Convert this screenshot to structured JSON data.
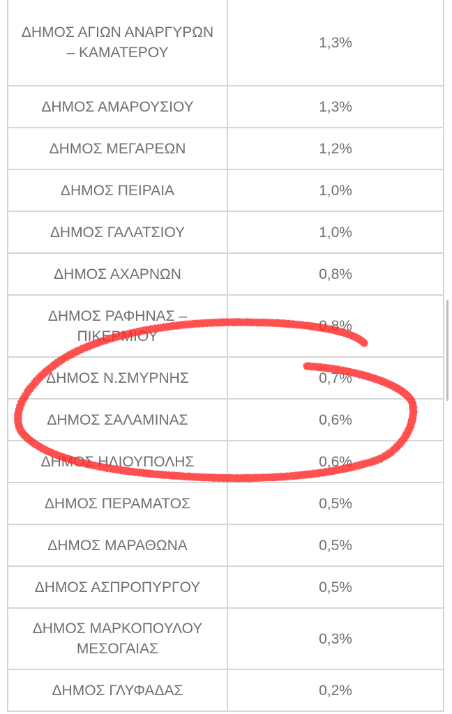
{
  "rows": [
    {
      "name": "ΔΗΜΟΣ ΑΓΙΩΝ ΑΝΑΡΓΥΡΩΝ – ΚΑΜΑΤΕΡΟΥ",
      "value": "1,3%"
    },
    {
      "name": "ΔΗΜΟΣ ΑΜΑΡΟΥΣΙΟΥ",
      "value": "1,3%"
    },
    {
      "name": "ΔΗΜΟΣ ΜΕΓΑΡΕΩΝ",
      "value": "1,2%"
    },
    {
      "name": "ΔΗΜΟΣ ΠΕΙΡΑΙΑ",
      "value": "1,0%"
    },
    {
      "name": "ΔΗΜΟΣ ΓΑΛΑΤΣΙΟΥ",
      "value": "1,0%"
    },
    {
      "name": "ΔΗΜΟΣ ΑΧΑΡΝΩΝ",
      "value": "0,8%"
    },
    {
      "name": "ΔΗΜΟΣ ΡΑΦΗΝΑΣ – ΠΙΚΕΡΜΙΟΥ",
      "value": "0,8%"
    },
    {
      "name": "ΔΗΜΟΣ Ν.ΣΜΥΡΝΗΣ",
      "value": "0,7%"
    },
    {
      "name": "ΔΗΜΟΣ ΣΑΛΑΜΙΝΑΣ",
      "value": "0,6%"
    },
    {
      "name": "ΔΗΜΟΣ ΗΛΙΟΥΠΟΛΗΣ",
      "value": "0,6%"
    },
    {
      "name": "ΔΗΜΟΣ ΠΕΡΑΜΑΤΟΣ",
      "value": "0,5%"
    },
    {
      "name": "ΔΗΜΟΣ ΜΑΡΑΘΩΝΑ",
      "value": "0,5%"
    },
    {
      "name": "ΔΗΜΟΣ ΑΣΠΡΟΠΥΡΓΟΥ",
      "value": "0,5%"
    },
    {
      "name": "ΔΗΜΟΣ ΜΑΡΚΟΠΟΥΛΟΥ ΜΕΣΟΓΑΙΑΣ",
      "value": "0,3%"
    },
    {
      "name": "ΔΗΜΟΣ ΓΛΥΦΑΔΑΣ",
      "value": "0,2%"
    }
  ],
  "annotation": {
    "color": "#ff2a2a",
    "type": "hand-drawn-circle"
  }
}
